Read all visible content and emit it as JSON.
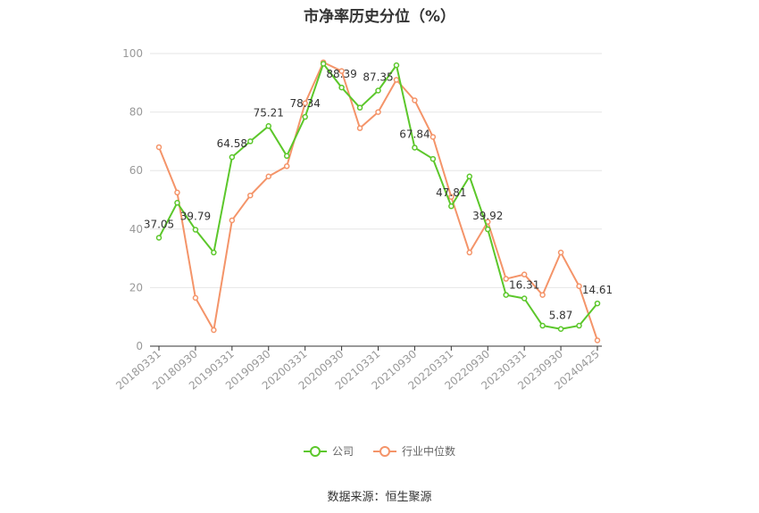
{
  "title": "市净率历史分位（%）",
  "source": "数据来源：恒生聚源",
  "colors": {
    "company": "#5cc72b",
    "industry": "#f49469",
    "grid": "#e6e6e6",
    "axis": "#999999"
  },
  "chart_data": {
    "type": "line",
    "title": "市净率历史分位（%）",
    "ylim": [
      0,
      100
    ],
    "y_ticks": [
      "0",
      "20",
      "40",
      "60",
      "80",
      "100"
    ],
    "x_tick_labels": [
      "20180331",
      "20180930",
      "20190331",
      "20190930",
      "20200331",
      "20200930",
      "20210331",
      "20210930",
      "20220331",
      "20220930",
      "20230331",
      "20230930",
      "20240425"
    ],
    "grid": true,
    "legend_position": "bottom",
    "series": [
      {
        "name": "公司",
        "color": "#5cc72b",
        "values": [
          37.05,
          49.0,
          39.79,
          32.0,
          64.58,
          70.0,
          75.21,
          65.0,
          78.34,
          96.5,
          88.39,
          81.5,
          87.35,
          96.0,
          67.84,
          64.0,
          47.81,
          58.0,
          39.92,
          17.5,
          16.31,
          7.0,
          5.87,
          7.0,
          14.61
        ],
        "labels": [
          "37.05",
          "",
          "39.79",
          "",
          "64.58",
          "",
          "75.21",
          "",
          "78.34",
          "",
          "88.39",
          "",
          "87.35",
          "",
          "67.84",
          "",
          "47.81",
          "",
          "39.92",
          "",
          "16.31",
          "",
          "5.87",
          "",
          "14.61"
        ]
      },
      {
        "name": "行业中位数",
        "color": "#f49469",
        "values": [
          68.0,
          52.5,
          16.5,
          5.5,
          43.0,
          51.5,
          58.0,
          61.5,
          83.0,
          97.0,
          94.0,
          74.5,
          80.0,
          91.0,
          84.0,
          71.5,
          51.0,
          32.0,
          42.5,
          23.0,
          24.5,
          17.5,
          32.0,
          20.5,
          2.0
        ]
      }
    ]
  }
}
